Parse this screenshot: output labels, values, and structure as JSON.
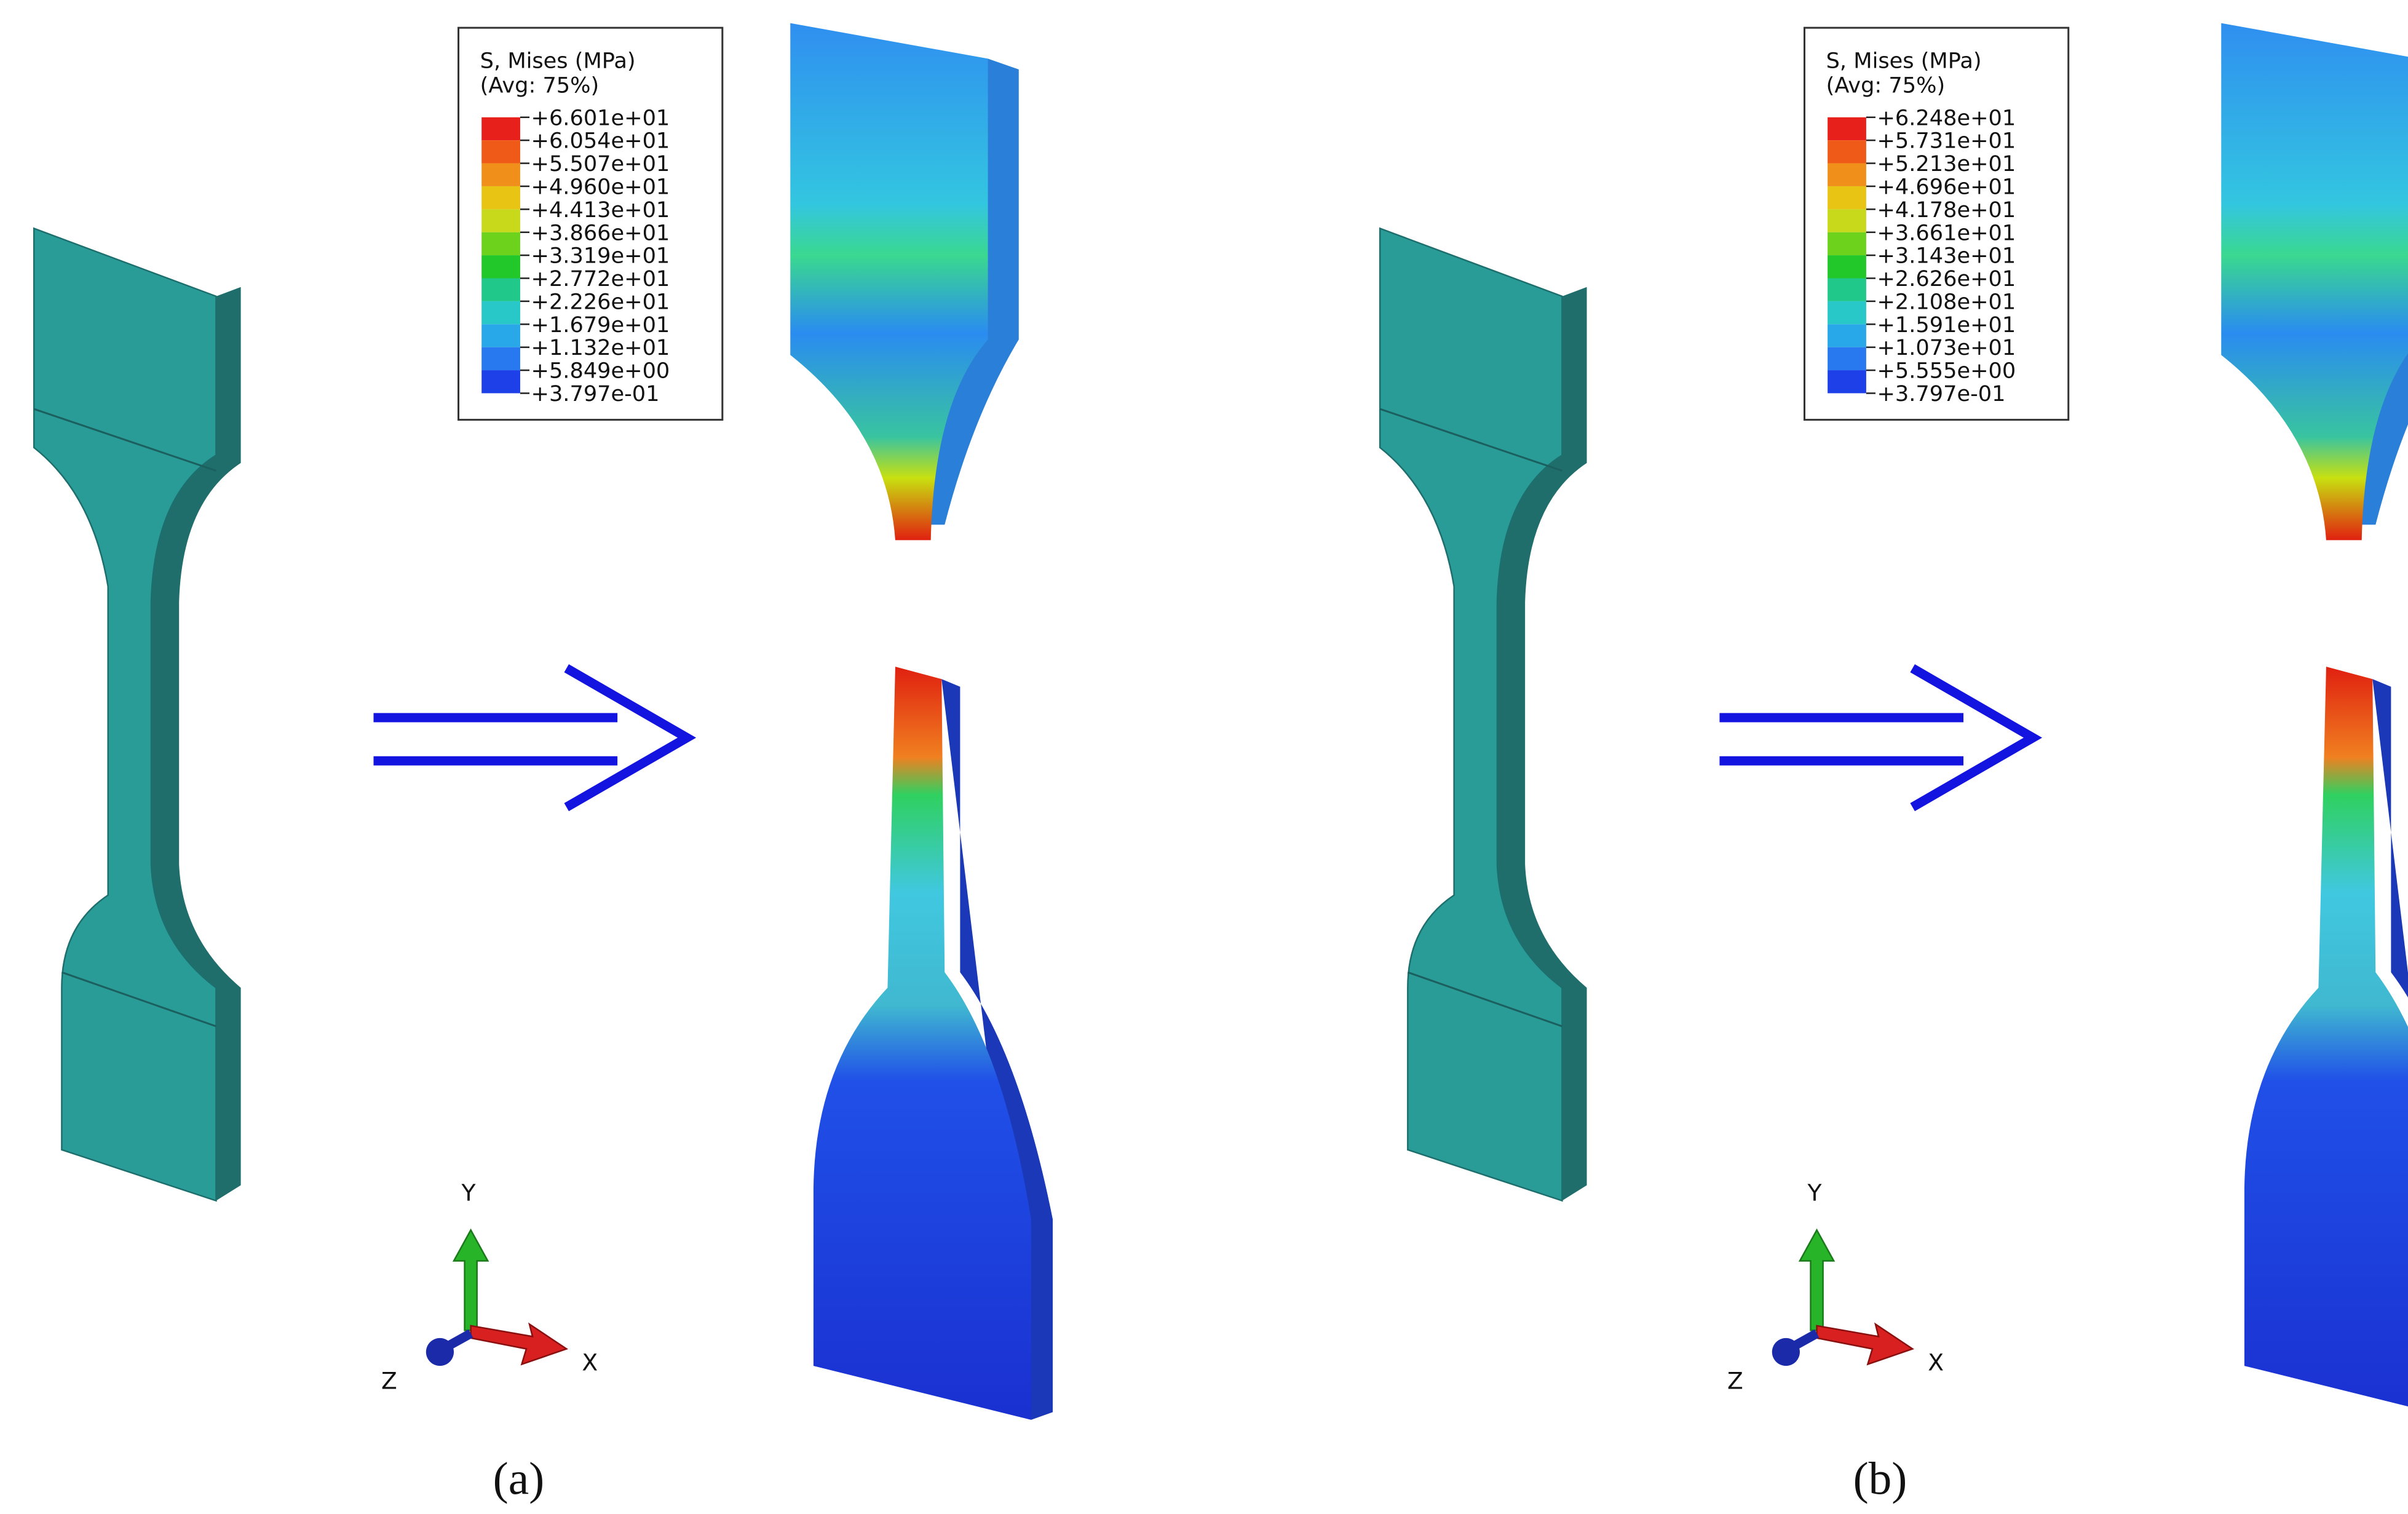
{
  "panels": [
    {
      "legend": {
        "title": "S, Mises (MPa)",
        "subtitle": "(Avg: 75%)",
        "levels": [
          "+6.601e+01",
          "+6.054e+01",
          "+5.507e+01",
          "+4.960e+01",
          "+4.413e+01",
          "+3.866e+01",
          "+3.319e+01",
          "+2.772e+01",
          "+2.226e+01",
          "+1.679e+01",
          "+1.132e+01",
          "+5.849e+00",
          "+3.797e-01"
        ]
      },
      "triad": {
        "y": "Y",
        "x": "X",
        "z": "Z"
      },
      "caption": "(a)"
    },
    {
      "legend": {
        "title": "S, Mises (MPa)",
        "subtitle": "(Avg: 75%)",
        "levels": [
          "+6.248e+01",
          "+5.731e+01",
          "+5.213e+01",
          "+4.696e+01",
          "+4.178e+01",
          "+3.661e+01",
          "+3.143e+01",
          "+2.626e+01",
          "+2.108e+01",
          "+1.591e+01",
          "+1.073e+01",
          "+5.555e+00",
          "+3.797e-01"
        ]
      },
      "triad": {
        "y": "Y",
        "x": "X",
        "z": "Z"
      },
      "caption": "(b)"
    }
  ]
}
